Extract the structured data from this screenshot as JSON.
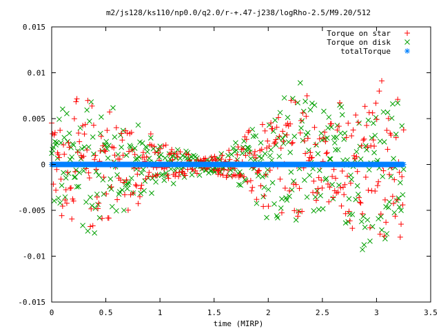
{
  "chart_data": {
    "type": "scatter",
    "title": "m2/js128/ks110/np0.0/q2.0/r-+.47-j238/logRho-2.5/M9.20/512",
    "xlabel": "time (MIRP)",
    "ylabel": "",
    "xlim": [
      0,
      3.5
    ],
    "ylim": [
      -0.015,
      0.015
    ],
    "x_ticks": [
      "0",
      "0.5",
      "1",
      "1.5",
      "2",
      "2.5",
      "3",
      "3.5"
    ],
    "y_ticks": [
      "-0.015",
      "-0.01",
      "-0.005",
      "0",
      "0.005",
      "0.01",
      "0.015"
    ],
    "x_tick_values": [
      0,
      0.5,
      1,
      1.5,
      2,
      2.5,
      3,
      3.5
    ],
    "y_tick_values": [
      -0.015,
      -0.01,
      -0.005,
      0,
      0.005,
      0.01,
      0.015
    ],
    "grid": false,
    "legend_position": "top-right",
    "t_max": 3.25,
    "series": [
      {
        "name": "Torque on star",
        "marker": "plus",
        "color": "#ff0000",
        "envelope": [
          [
            0.0,
            0.0055
          ],
          [
            0.1,
            0.0065
          ],
          [
            0.25,
            0.0075
          ],
          [
            0.4,
            0.0082
          ],
          [
            0.55,
            0.007
          ],
          [
            0.7,
            0.0055
          ],
          [
            0.85,
            0.004
          ],
          [
            1.0,
            0.0028
          ],
          [
            1.15,
            0.0018
          ],
          [
            1.3,
            0.0012
          ],
          [
            1.45,
            0.001
          ],
          [
            1.6,
            0.0014
          ],
          [
            1.75,
            0.003
          ],
          [
            1.9,
            0.0055
          ],
          [
            2.05,
            0.0075
          ],
          [
            2.2,
            0.0085
          ],
          [
            2.35,
            0.008
          ],
          [
            2.5,
            0.0065
          ],
          [
            2.65,
            0.007
          ],
          [
            2.8,
            0.0085
          ],
          [
            2.95,
            0.01
          ],
          [
            3.1,
            0.0095
          ],
          [
            3.25,
            0.0085
          ]
        ]
      },
      {
        "name": "Torque on disk",
        "marker": "cross",
        "color": "#00a000",
        "envelope": [
          [
            0.0,
            0.0055
          ],
          [
            0.1,
            0.007
          ],
          [
            0.25,
            0.008
          ],
          [
            0.4,
            0.0085
          ],
          [
            0.55,
            0.0072
          ],
          [
            0.7,
            0.0056
          ],
          [
            0.85,
            0.0042
          ],
          [
            1.0,
            0.003
          ],
          [
            1.15,
            0.0019
          ],
          [
            1.3,
            0.0013
          ],
          [
            1.45,
            0.0011
          ],
          [
            1.6,
            0.0015
          ],
          [
            1.75,
            0.0032
          ],
          [
            1.9,
            0.0058
          ],
          [
            2.05,
            0.0078
          ],
          [
            2.2,
            0.0088
          ],
          [
            2.35,
            0.0082
          ],
          [
            2.5,
            0.0068
          ],
          [
            2.65,
            0.0072
          ],
          [
            2.8,
            0.0088
          ],
          [
            2.95,
            0.0102
          ],
          [
            3.1,
            0.0098
          ],
          [
            3.25,
            0.0088
          ]
        ]
      },
      {
        "name": "totalTorque",
        "marker": "star",
        "color": "#0080ff",
        "value": 0
      }
    ]
  }
}
